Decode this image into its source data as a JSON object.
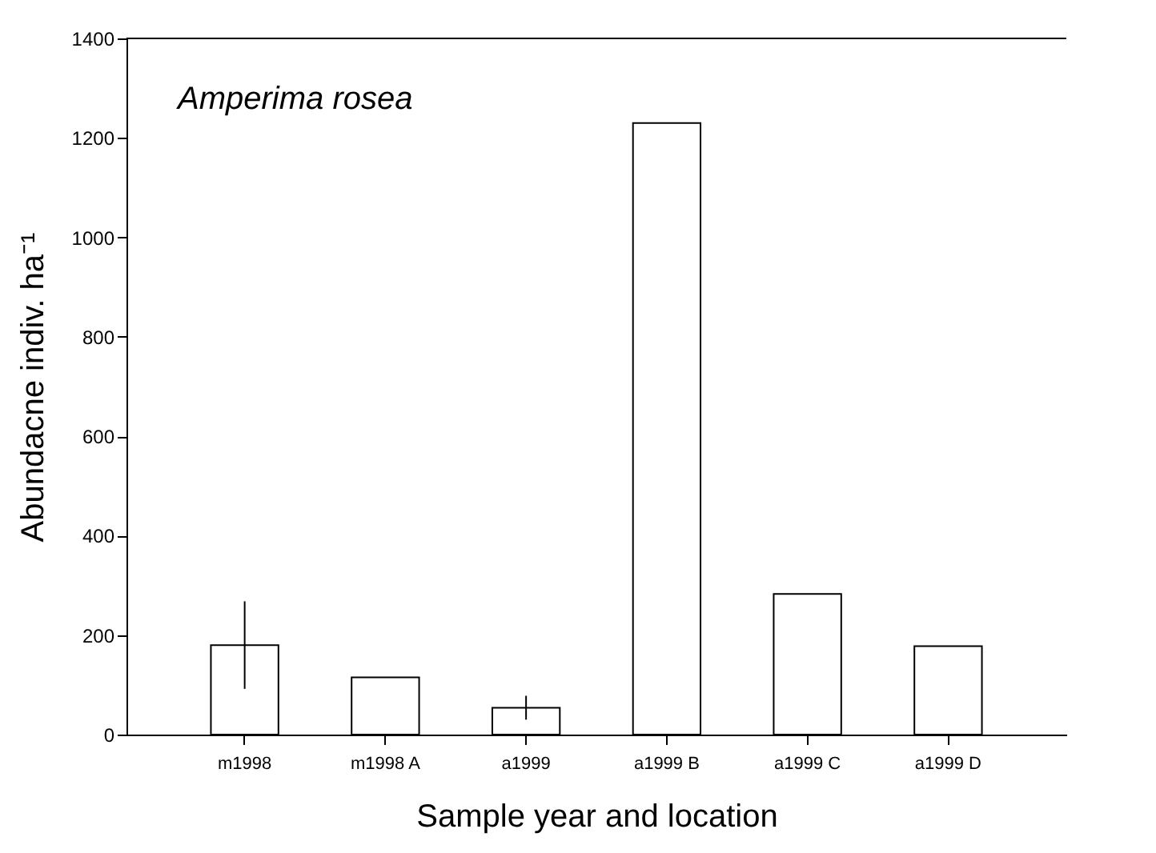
{
  "chart_data": {
    "type": "bar",
    "xlabel": "Sample year and location",
    "ylabel": "Abundacne indiv. ha⁻¹",
    "annotations": [
      "Amperima rosea"
    ],
    "categories": [
      "m1998",
      "m1998 A",
      "a1999",
      "a1999 B",
      "a1999 C",
      "a1999 D"
    ],
    "values": [
      180,
      115,
      54,
      1230,
      283,
      178
    ],
    "errors": [
      88,
      null,
      24,
      null,
      null,
      null
    ],
    "color": "#ffffff",
    "ylim": [
      0,
      1400
    ],
    "yticks": [
      0,
      200,
      400,
      600,
      800,
      1000,
      1200,
      1400
    ],
    "grid": false
  }
}
